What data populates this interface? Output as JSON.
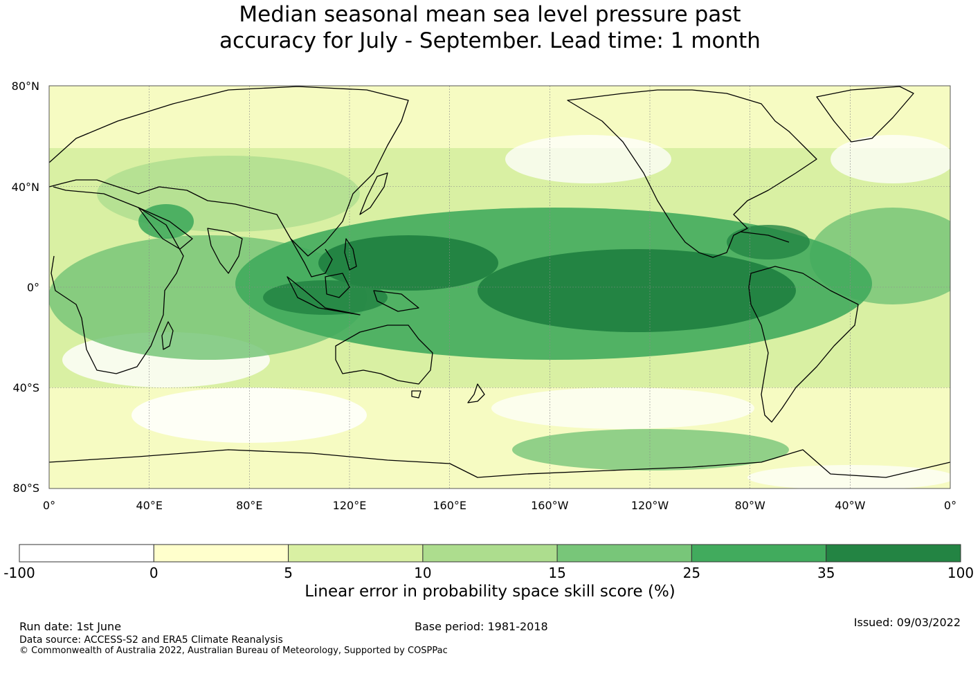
{
  "title_line1": "Median seasonal mean sea level pressure past",
  "title_line2": "accuracy for July - September. Lead time: 1 month",
  "map": {
    "lat_labels": [
      "80°N",
      "40°N",
      "0°",
      "40°S",
      "80°S"
    ],
    "lon_labels": [
      "0°",
      "40°E",
      "80°E",
      "120°E",
      "160°E",
      "160°W",
      "120°W",
      "80°W",
      "40°W",
      "0°"
    ],
    "colors": {
      "ocean_base": "#c7e6a0",
      "land_outline": "#000000",
      "grid": "#9a9a9a"
    }
  },
  "colorbar": {
    "ticks": [
      "-100",
      "0",
      "5",
      "10",
      "15",
      "25",
      "35",
      "100"
    ],
    "colors": [
      "#ffffff",
      "#ffffcc",
      "#d9f0a3",
      "#addd8e",
      "#78c679",
      "#41ab5d",
      "#238443"
    ],
    "label": "Linear error in probability space skill score (%)"
  },
  "footer": {
    "run_date": "Run date: 1st June",
    "base_period": "Base period: 1981-2018",
    "issued": "Issued: 09/03/2022",
    "data_source": "Data source: ACCESS-S2 and ERA5 Climate Reanalysis",
    "copyright": "© Commonwealth of Australia 2022, Australian Bureau of Meteorology, Supported by COSPPac"
  }
}
